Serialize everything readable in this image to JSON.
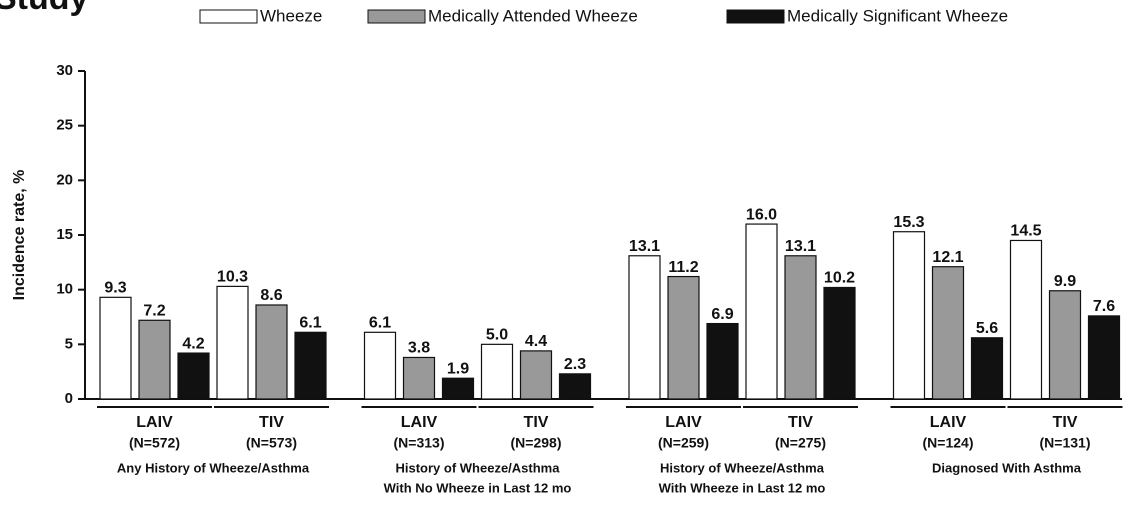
{
  "chart_data": {
    "type": "bar",
    "title": "Study",
    "y_label": "Incidence rate, %",
    "categories": [
      "LAIV",
      "TIV",
      "LAIV",
      "TIV",
      "LAIV",
      "TIV",
      "LAIV",
      "TIV"
    ],
    "category_counts": [
      "(N=572)",
      "(N=573)",
      "(N=313)",
      "(N=298)",
      "(N=259)",
      "(N=275)",
      "(N=124)",
      "(N=131)"
    ],
    "groups": [
      {
        "lines": [
          "Any History of Wheeze/Asthma"
        ]
      },
      {
        "lines": [
          "History of Wheeze/Asthma",
          "With No Wheeze in Last 12 mo"
        ]
      },
      {
        "lines": [
          "History of Wheeze/Asthma",
          "With Wheeze in Last 12 mo"
        ]
      },
      {
        "lines": [
          "Diagnosed With Asthma"
        ]
      }
    ],
    "series": [
      {
        "name": "Wheeze",
        "color": "#ffffff",
        "values": [
          9.3,
          10.3,
          6.1,
          5.0,
          13.1,
          16.0,
          15.3,
          14.5
        ],
        "value_labels": [
          "9.3",
          "10.3",
          "6.1",
          "5.0",
          "13.1",
          "16.0",
          "15.3",
          "14.5"
        ]
      },
      {
        "name": "Medically Attended Wheeze",
        "color": "#999999",
        "values": [
          7.2,
          8.6,
          3.8,
          4.4,
          11.2,
          13.1,
          12.1,
          9.9
        ],
        "value_labels": [
          "7.2",
          "8.6",
          "3.8",
          "4.4",
          "11.2",
          "13.1",
          "12.1",
          "9.9"
        ]
      },
      {
        "name": "Medically Significant Wheeze",
        "color": "#111111",
        "values": [
          4.2,
          6.1,
          1.9,
          2.3,
          6.9,
          10.2,
          5.6,
          7.6
        ],
        "value_labels": [
          "4.2",
          "6.1",
          "1.9",
          "2.3",
          "6.9",
          "10.2",
          "5.6",
          "7.6"
        ]
      }
    ],
    "ylim": [
      0,
      30
    ],
    "yticks": [
      0,
      5,
      10,
      15,
      20,
      25,
      30
    ],
    "grid": false,
    "legend": "top"
  }
}
